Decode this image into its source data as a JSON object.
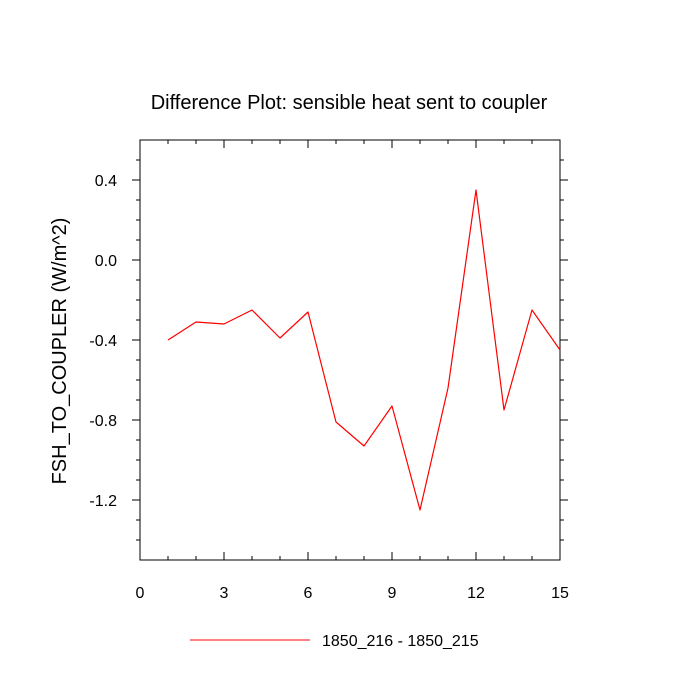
{
  "chart_data": {
    "type": "line",
    "title": "Difference Plot: sensible heat sent to coupler",
    "xlabel": "",
    "ylabel": "FSH_TO_COUPLER  (W/m^2)",
    "xlim": [
      0,
      15
    ],
    "ylim": [
      -1.5,
      0.6
    ],
    "xticks": [
      0,
      3,
      6,
      9,
      12,
      15
    ],
    "xtick_labels": [
      "0",
      "3",
      "6",
      "9",
      "12",
      "15"
    ],
    "yticks": [
      0.4,
      0.0,
      -0.4,
      -0.8,
      -1.2
    ],
    "ytick_labels": [
      "0.4",
      "0.0",
      "-0.4",
      "-0.8",
      "-1.2"
    ],
    "grid": false,
    "legend_position": "bottom-center",
    "series": [
      {
        "name": "1850_216 - 1850_215",
        "color": "#ff0000",
        "x": [
          1,
          2,
          3,
          4,
          5,
          6,
          7,
          8,
          9,
          10,
          11,
          12,
          13,
          14,
          15
        ],
        "y": [
          -0.4,
          -0.31,
          -0.32,
          -0.25,
          -0.39,
          -0.26,
          -0.81,
          -0.93,
          -0.73,
          -1.25,
          -0.64,
          0.35,
          -0.75,
          -0.25,
          -0.45
        ]
      }
    ]
  }
}
